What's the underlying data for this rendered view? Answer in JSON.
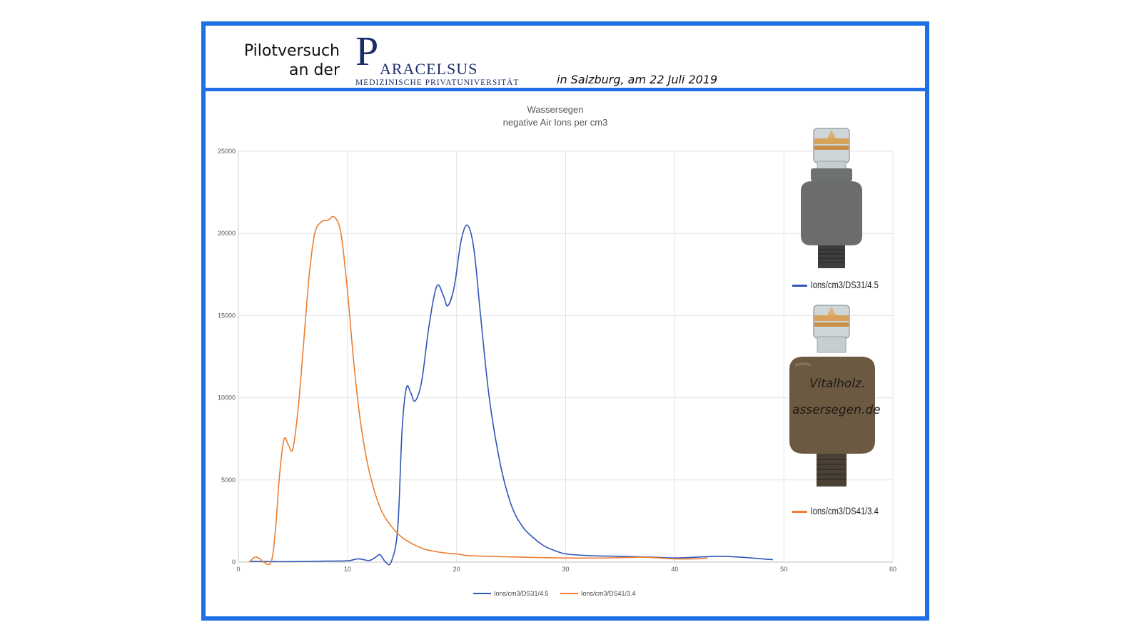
{
  "header": {
    "pilot_line1": "Pilotversuch",
    "pilot_line2": "an der",
    "logo_initial": "P",
    "logo_rest": "ARACELSUS",
    "logo_subtitle": "MEDIZINISCHE PRIVATUNIVERSITÄT",
    "place_date": "in Salzburg, am 22 Juli 2019"
  },
  "colors": {
    "frame": "#1f6fe5",
    "series_blue": "#2f55b8",
    "series_orange": "#ed7d31"
  },
  "product_images": [
    {
      "name": "grey-ionizer-device",
      "legend": "Ions/cm3/DS31/4.5"
    },
    {
      "name": "brown-ionizer-device",
      "legend": "Ions/cm3/DS41/3.4",
      "label_text": "Vitalholz.de / Wassersegen.de"
    }
  ],
  "chart_data": {
    "type": "line",
    "title": "Wassersegen",
    "subtitle": "negative Air Ions per cm3",
    "xlim": [
      0,
      60
    ],
    "ylim": [
      0,
      25000
    ],
    "x_ticks": [
      0,
      10,
      20,
      30,
      40,
      50,
      60
    ],
    "y_ticks": [
      0,
      5000,
      10000,
      15000,
      20000,
      25000
    ],
    "grid": true,
    "legend_position": "bottom",
    "series": [
      {
        "name": "Ions/cm3/DS31/4.5",
        "color": "#2f55b8",
        "points": [
          [
            1,
            50
          ],
          [
            3,
            30
          ],
          [
            5,
            30
          ],
          [
            8,
            60
          ],
          [
            10,
            80
          ],
          [
            11,
            200
          ],
          [
            12,
            100
          ],
          [
            12.7,
            350
          ],
          [
            13,
            450
          ],
          [
            13.5,
            0
          ],
          [
            14,
            0
          ],
          [
            14.6,
            2000
          ],
          [
            15,
            8000
          ],
          [
            15.4,
            10600
          ],
          [
            15.8,
            10300
          ],
          [
            16.2,
            9800
          ],
          [
            16.8,
            11000
          ],
          [
            17.5,
            14500
          ],
          [
            18.2,
            16800
          ],
          [
            18.8,
            16200
          ],
          [
            19.2,
            15600
          ],
          [
            19.8,
            16800
          ],
          [
            20.4,
            19500
          ],
          [
            21,
            20500
          ],
          [
            21.6,
            19000
          ],
          [
            22.2,
            15000
          ],
          [
            23,
            10000
          ],
          [
            24,
            6000
          ],
          [
            25,
            3500
          ],
          [
            26,
            2200
          ],
          [
            27,
            1500
          ],
          [
            28,
            1000
          ],
          [
            29,
            700
          ],
          [
            30,
            500
          ],
          [
            32,
            400
          ],
          [
            35,
            350
          ],
          [
            38,
            300
          ],
          [
            40,
            250
          ],
          [
            42,
            300
          ],
          [
            44,
            350
          ],
          [
            46,
            300
          ],
          [
            48,
            200
          ],
          [
            49,
            150
          ]
        ]
      },
      {
        "name": "Ions/cm3/DS41/3.4",
        "color": "#ed7d31",
        "points": [
          [
            1,
            0
          ],
          [
            1.5,
            300
          ],
          [
            2,
            200
          ],
          [
            2.3,
            0
          ],
          [
            3,
            0
          ],
          [
            3.4,
            2000
          ],
          [
            3.8,
            5500
          ],
          [
            4.2,
            7500
          ],
          [
            4.6,
            7100
          ],
          [
            5,
            6900
          ],
          [
            5.5,
            9500
          ],
          [
            6,
            13500
          ],
          [
            6.5,
            17500
          ],
          [
            7,
            20000
          ],
          [
            7.6,
            20700
          ],
          [
            8.2,
            20800
          ],
          [
            8.8,
            21000
          ],
          [
            9.4,
            20000
          ],
          [
            10,
            16500
          ],
          [
            10.6,
            12000
          ],
          [
            11.2,
            8500
          ],
          [
            12,
            5500
          ],
          [
            13,
            3300
          ],
          [
            14,
            2200
          ],
          [
            15,
            1500
          ],
          [
            16,
            1100
          ],
          [
            17,
            800
          ],
          [
            18,
            650
          ],
          [
            19,
            550
          ],
          [
            20,
            500
          ],
          [
            21,
            400
          ],
          [
            23,
            350
          ],
          [
            26,
            300
          ],
          [
            30,
            250
          ],
          [
            34,
            250
          ],
          [
            37,
            300
          ],
          [
            40,
            200
          ],
          [
            42,
            200
          ],
          [
            43,
            250
          ]
        ]
      }
    ]
  }
}
